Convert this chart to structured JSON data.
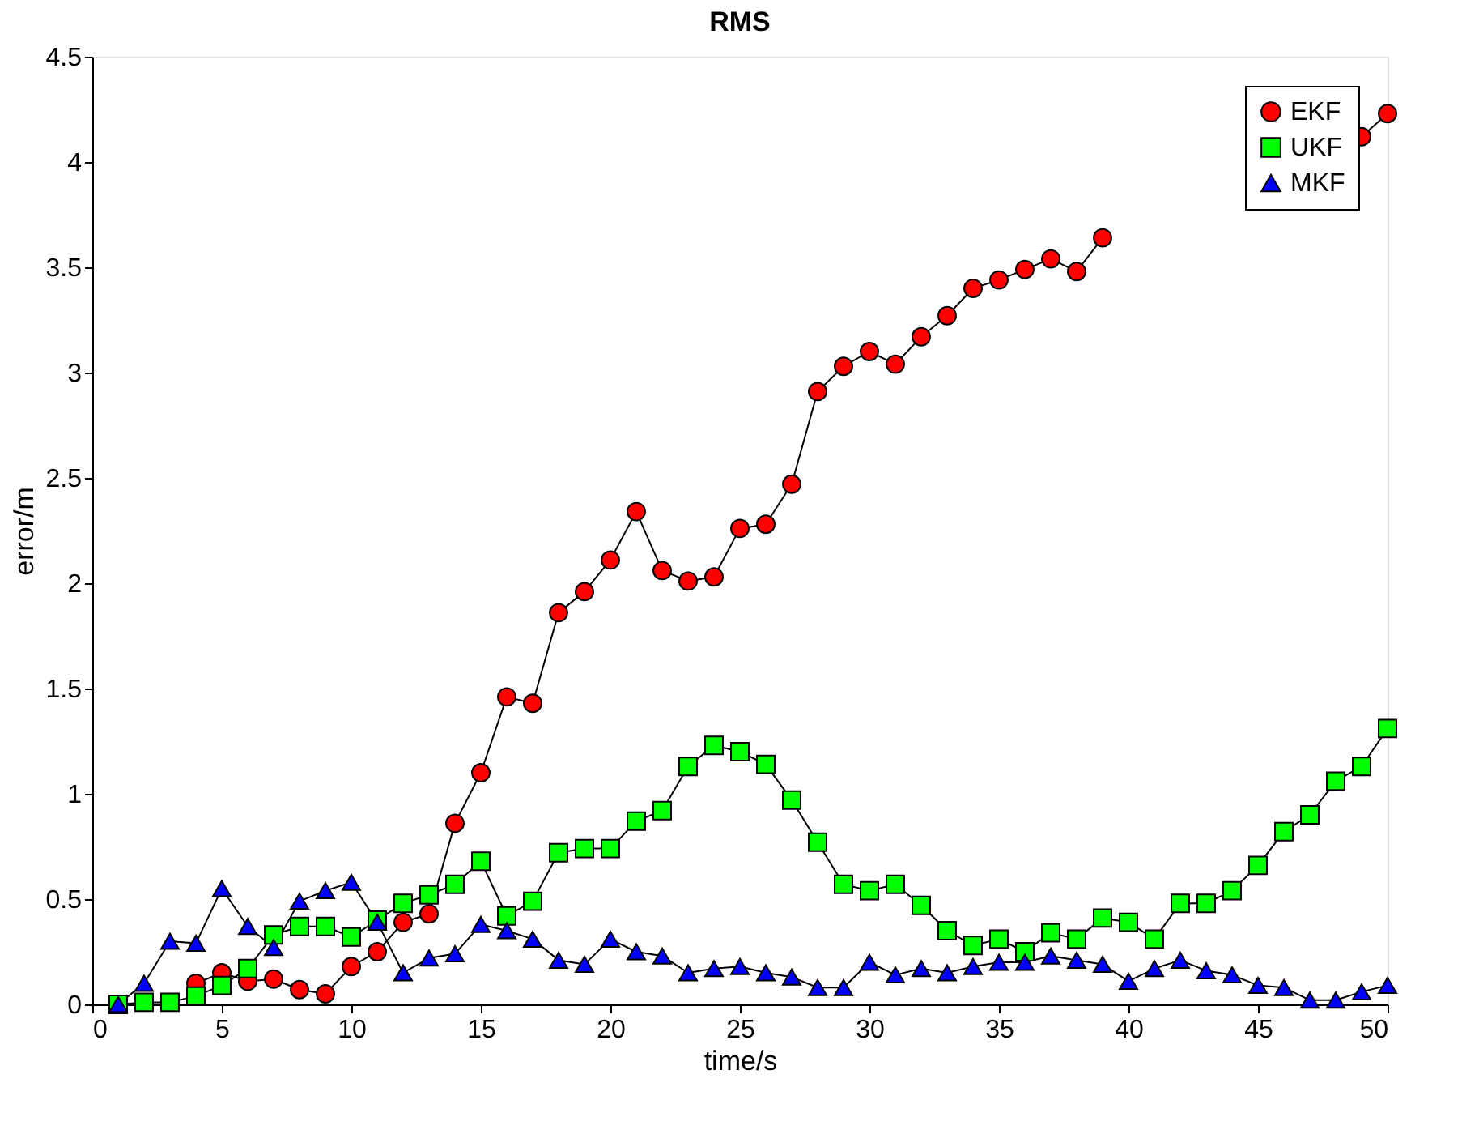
{
  "chart_data": {
    "type": "line",
    "title": "RMS",
    "xlabel": "time/s",
    "ylabel": "error/m",
    "x": [
      1,
      2,
      3,
      4,
      5,
      6,
      7,
      8,
      9,
      10,
      11,
      12,
      13,
      14,
      15,
      16,
      17,
      18,
      19,
      20,
      21,
      22,
      23,
      24,
      25,
      26,
      27,
      28,
      29,
      30,
      31,
      32,
      33,
      34,
      35,
      36,
      37,
      38,
      39,
      40,
      41,
      42,
      43,
      44,
      45,
      46,
      47,
      48,
      49,
      50
    ],
    "series": [
      {
        "name": "EKF",
        "color": "#ff0000",
        "marker": "circle",
        "values": [
          null,
          null,
          null,
          0.1,
          0.15,
          0.11,
          0.12,
          0.07,
          0.05,
          0.18,
          0.25,
          0.39,
          0.43,
          0.86,
          1.1,
          1.46,
          1.43,
          1.86,
          1.96,
          2.11,
          2.34,
          2.06,
          2.01,
          2.03,
          2.26,
          2.28,
          2.47,
          2.91,
          3.03,
          3.1,
          3.04,
          3.17,
          3.27,
          3.4,
          3.44,
          3.49,
          3.54,
          3.48,
          3.64,
          null,
          null,
          null,
          null,
          null,
          null,
          null,
          null,
          null,
          4.12,
          4.23
        ]
      },
      {
        "name": "UKF",
        "color": "#00ff00",
        "marker": "square",
        "values": [
          0,
          0.01,
          0.01,
          0.04,
          0.09,
          0.17,
          0.33,
          0.37,
          0.37,
          0.32,
          0.4,
          0.48,
          0.52,
          0.57,
          0.68,
          0.42,
          0.49,
          0.72,
          0.74,
          0.74,
          0.87,
          0.92,
          1.13,
          1.23,
          1.2,
          1.14,
          0.97,
          0.77,
          0.57,
          0.54,
          0.57,
          0.47,
          0.35,
          0.28,
          0.31,
          0.25,
          0.34,
          0.31,
          0.41,
          0.39,
          0.31,
          0.48,
          0.48,
          0.54,
          0.66,
          0.82,
          0.9,
          1.06,
          1.13,
          1.31
        ]
      },
      {
        "name": "MKF",
        "color": "#0000ff",
        "marker": "triangle",
        "values": [
          0,
          0.1,
          0.3,
          0.29,
          0.55,
          0.37,
          0.27,
          0.49,
          0.54,
          0.58,
          0.39,
          0.15,
          0.22,
          0.24,
          0.38,
          0.35,
          0.31,
          0.21,
          0.19,
          0.31,
          0.25,
          0.23,
          0.15,
          0.17,
          0.18,
          0.15,
          0.13,
          0.08,
          0.08,
          0.2,
          0.14,
          0.17,
          0.15,
          0.18,
          0.2,
          0.2,
          0.23,
          0.21,
          0.19,
          0.11,
          0.17,
          0.21,
          0.16,
          0.14,
          0.09,
          0.08,
          0.02,
          0.02,
          0.06,
          0.09
        ]
      }
    ],
    "xlim": [
      0,
      50
    ],
    "xticks": [
      0,
      5,
      10,
      15,
      20,
      25,
      30,
      35,
      40,
      45,
      50
    ],
    "ylim": [
      0,
      4.5
    ],
    "yticks": [
      0,
      0.5,
      1,
      1.5,
      2,
      2.5,
      3,
      3.5,
      4,
      4.5
    ],
    "legend": "top right",
    "grid": false,
    "line_style": "solid"
  }
}
